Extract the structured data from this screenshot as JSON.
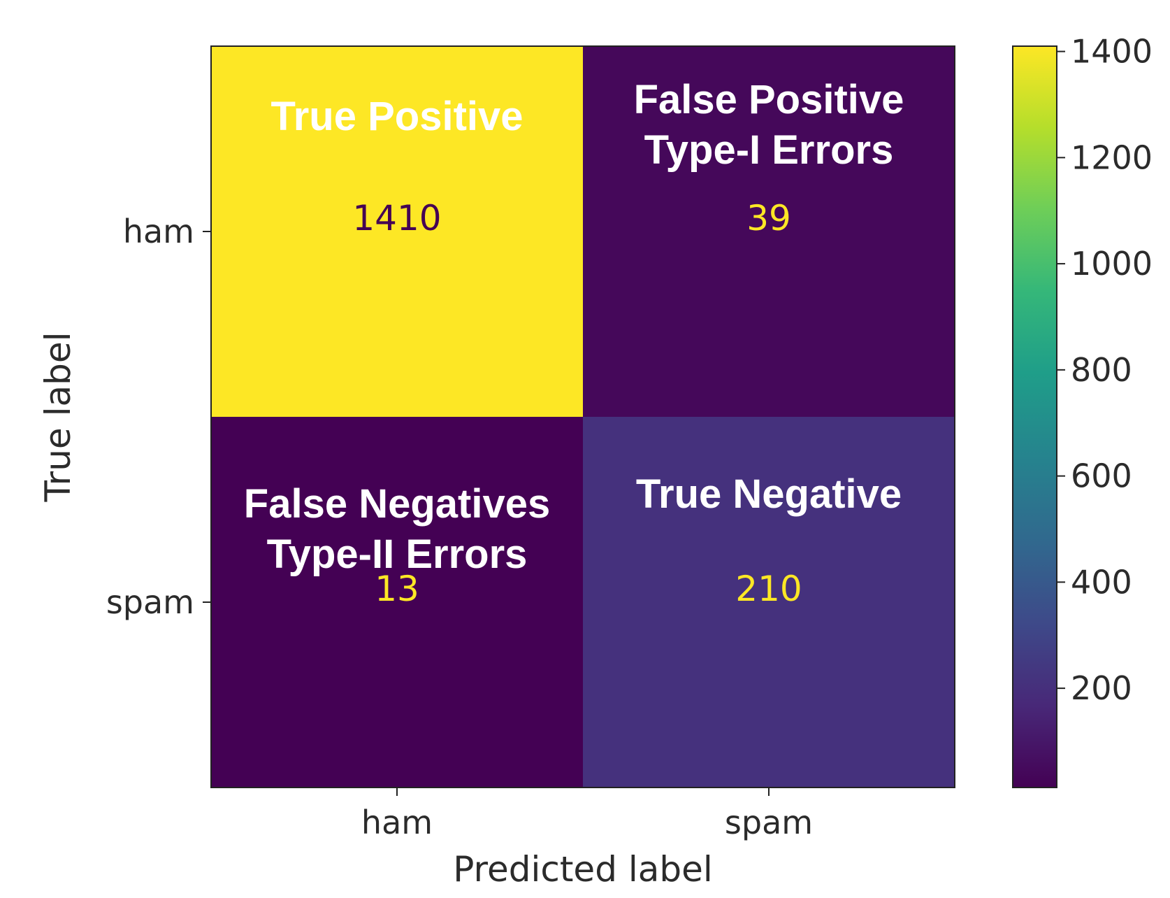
{
  "chart_data": {
    "type": "heatmap",
    "xlabel": "Predicted label",
    "ylabel": "True label",
    "x_categories": [
      "ham",
      "spam"
    ],
    "y_categories": [
      "ham",
      "spam"
    ],
    "values": [
      [
        1410,
        39
      ],
      [
        13,
        210
      ]
    ],
    "annotations": [
      [
        "True Positive"
      ],
      [
        "False Positive",
        "Type-I Errors"
      ],
      [
        "False Negatives",
        "Type-II Errors"
      ],
      [
        "True Negative"
      ]
    ],
    "colorbar": {
      "colormap": "viridis",
      "range": [
        13,
        1410
      ],
      "ticks": [
        200,
        400,
        600,
        800,
        1000,
        1200,
        1400
      ]
    },
    "colors": {
      "low": "#440154",
      "high": "#fde725",
      "mid_low": "#472e7c",
      "value_text_on_dark": "#fde725",
      "value_text_on_light": "#440154"
    }
  }
}
